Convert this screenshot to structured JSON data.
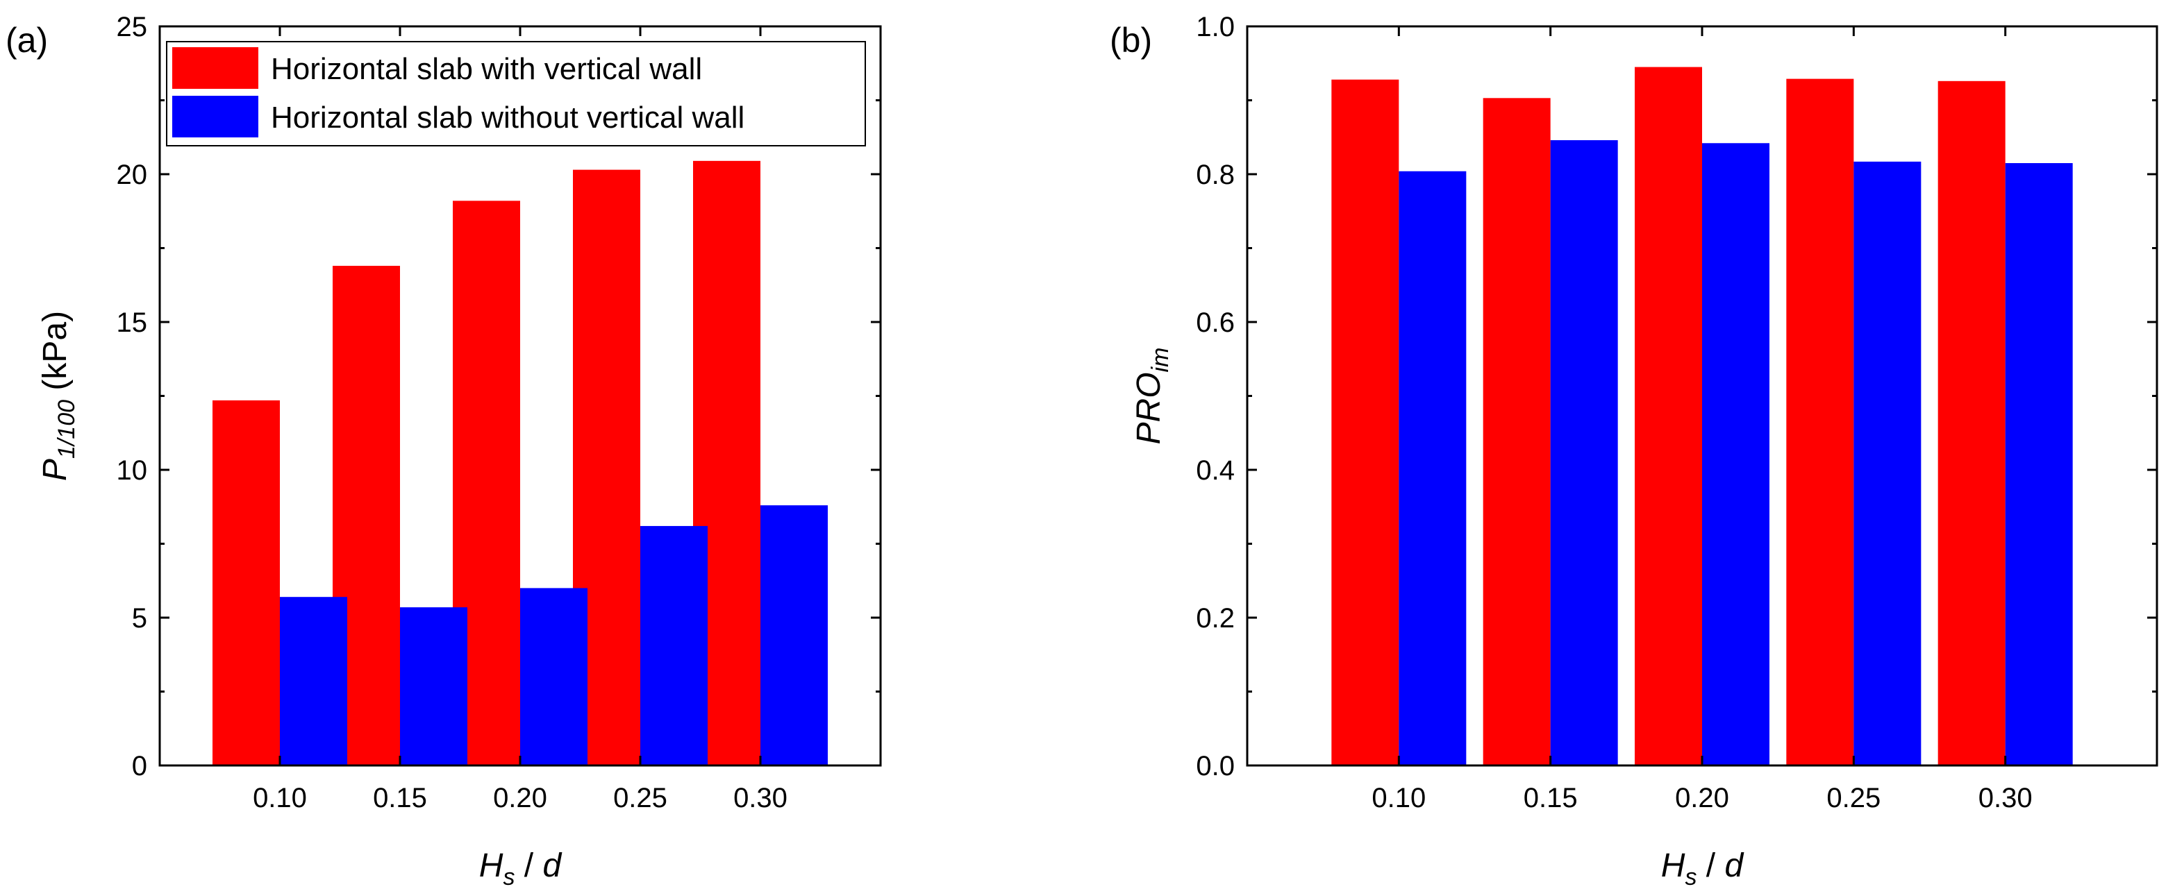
{
  "chart_data": [
    {
      "type": "bar",
      "panel_label": "(a)",
      "categories": [
        "0.10",
        "0.15",
        "0.20",
        "0.25",
        "0.30"
      ],
      "series": [
        {
          "name": "Horizontal slab with vertical wall",
          "color": "#ff0000",
          "values": [
            12.35,
            16.9,
            19.1,
            20.15,
            20.45
          ]
        },
        {
          "name": "Horizontal slab without vertical wall",
          "color": "#0000ff",
          "values": [
            5.7,
            5.35,
            6.0,
            8.1,
            8.8
          ]
        }
      ],
      "xlabel": {
        "main": "H",
        "sub": "s",
        "rest": " / d"
      },
      "ylabel": {
        "main": "P",
        "sub": "1/100",
        "rest": " (kPa)"
      },
      "ylim": [
        0,
        25
      ],
      "yticks": [
        "0",
        "5",
        "10",
        "15",
        "20",
        "25"
      ],
      "grid": false,
      "legend": "top-left"
    },
    {
      "type": "bar",
      "panel_label": "(b)",
      "categories": [
        "0.10",
        "0.15",
        "0.20",
        "0.25",
        "0.30"
      ],
      "series": [
        {
          "name": "Horizontal slab with vertical wall",
          "color": "#ff0000",
          "values": [
            0.928,
            0.903,
            0.945,
            0.929,
            0.926
          ]
        },
        {
          "name": "Horizontal slab without vertical wall",
          "color": "#0000ff",
          "values": [
            0.804,
            0.846,
            0.842,
            0.817,
            0.815
          ]
        }
      ],
      "xlabel": {
        "main": "H",
        "sub": "s",
        "rest": " / d"
      },
      "ylabel": {
        "main": "PRO",
        "sub": "im",
        "rest": ""
      },
      "ylim": [
        0,
        1.0
      ],
      "yticks": [
        "0.0",
        "0.2",
        "0.4",
        "0.6",
        "0.8",
        "1.0"
      ],
      "grid": false,
      "legend": "none"
    }
  ]
}
